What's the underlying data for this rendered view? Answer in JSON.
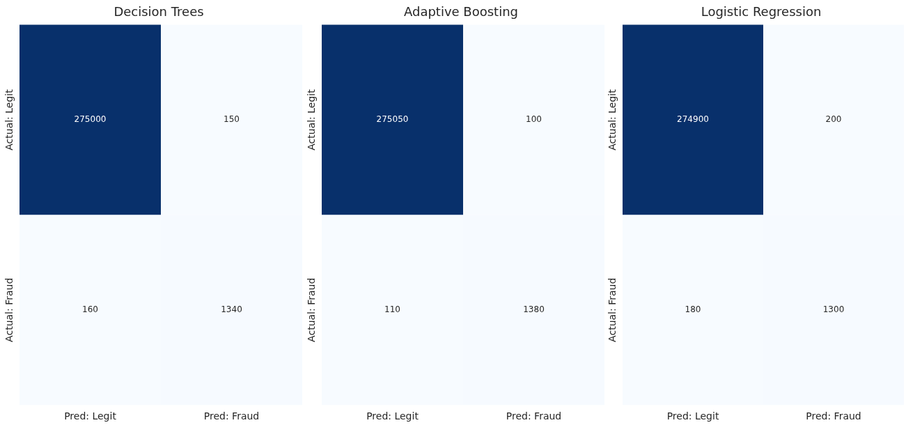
{
  "chart_data": [
    {
      "type": "heatmap",
      "title": "Decision Trees",
      "categories": [
        "Pred: Legit",
        "Pred: Fraud"
      ],
      "y_categories": [
        "Actual: Legit",
        "Actual: Fraud"
      ],
      "cells": [
        [
          275000,
          150
        ],
        [
          160,
          1340
        ]
      ],
      "data_labels": true
    },
    {
      "type": "heatmap",
      "title": "Adaptive Boosting",
      "categories": [
        "Pred: Legit",
        "Pred: Fraud"
      ],
      "y_categories": [
        "Actual: Legit",
        "Actual: Fraud"
      ],
      "cells": [
        [
          275050,
          100
        ],
        [
          110,
          1380
        ]
      ],
      "data_labels": true
    },
    {
      "type": "heatmap",
      "title": "Logistic Regression",
      "categories": [
        "Pred: Legit",
        "Pred: Fraud"
      ],
      "y_categories": [
        "Actual: Legit",
        "Actual: Fraud"
      ],
      "cells": [
        [
          274900,
          200
        ],
        [
          180,
          1300
        ]
      ],
      "data_labels": true
    }
  ]
}
